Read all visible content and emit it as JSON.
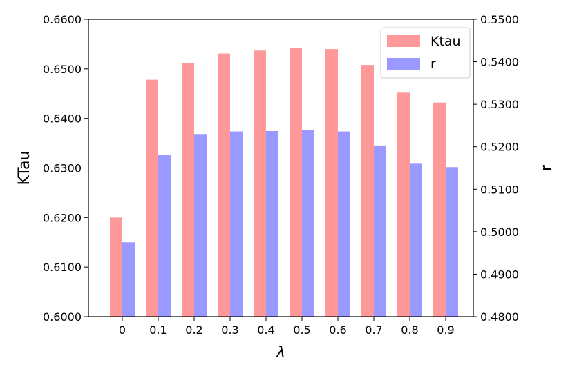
{
  "chart_data": {
    "type": "bar",
    "categories": [
      "0",
      "0.1",
      "0.2",
      "0.3",
      "0.4",
      "0.5",
      "0.6",
      "0.7",
      "0.8",
      "0.9"
    ],
    "xlabel": "λ",
    "series": [
      {
        "name": "Ktau",
        "axis": "left",
        "color": "#ff9999",
        "values": [
          0.62,
          0.6478,
          0.6512,
          0.6531,
          0.6537,
          0.6542,
          0.654,
          0.6508,
          0.6452,
          0.6432
        ]
      },
      {
        "name": "r",
        "axis": "right",
        "color": "#9999ff",
        "values": [
          0.4975,
          0.518,
          0.523,
          0.5236,
          0.5237,
          0.524,
          0.5236,
          0.5203,
          0.516,
          0.5152
        ]
      }
    ],
    "left_axis": {
      "label": "KTau",
      "ylim": [
        0.6,
        0.66
      ],
      "ticks": [
        "0.6000",
        "0.6100",
        "0.6200",
        "0.6300",
        "0.6400",
        "0.6500",
        "0.6600"
      ]
    },
    "right_axis": {
      "label": "r",
      "ylim": [
        0.48,
        0.55
      ],
      "ticks": [
        "0.4800",
        "0.4900",
        "0.5000",
        "0.5100",
        "0.5200",
        "0.5300",
        "0.5400",
        "0.5500"
      ]
    },
    "legend": {
      "position": "top-right",
      "entries": [
        "Ktau",
        "r"
      ]
    },
    "grid": false
  }
}
